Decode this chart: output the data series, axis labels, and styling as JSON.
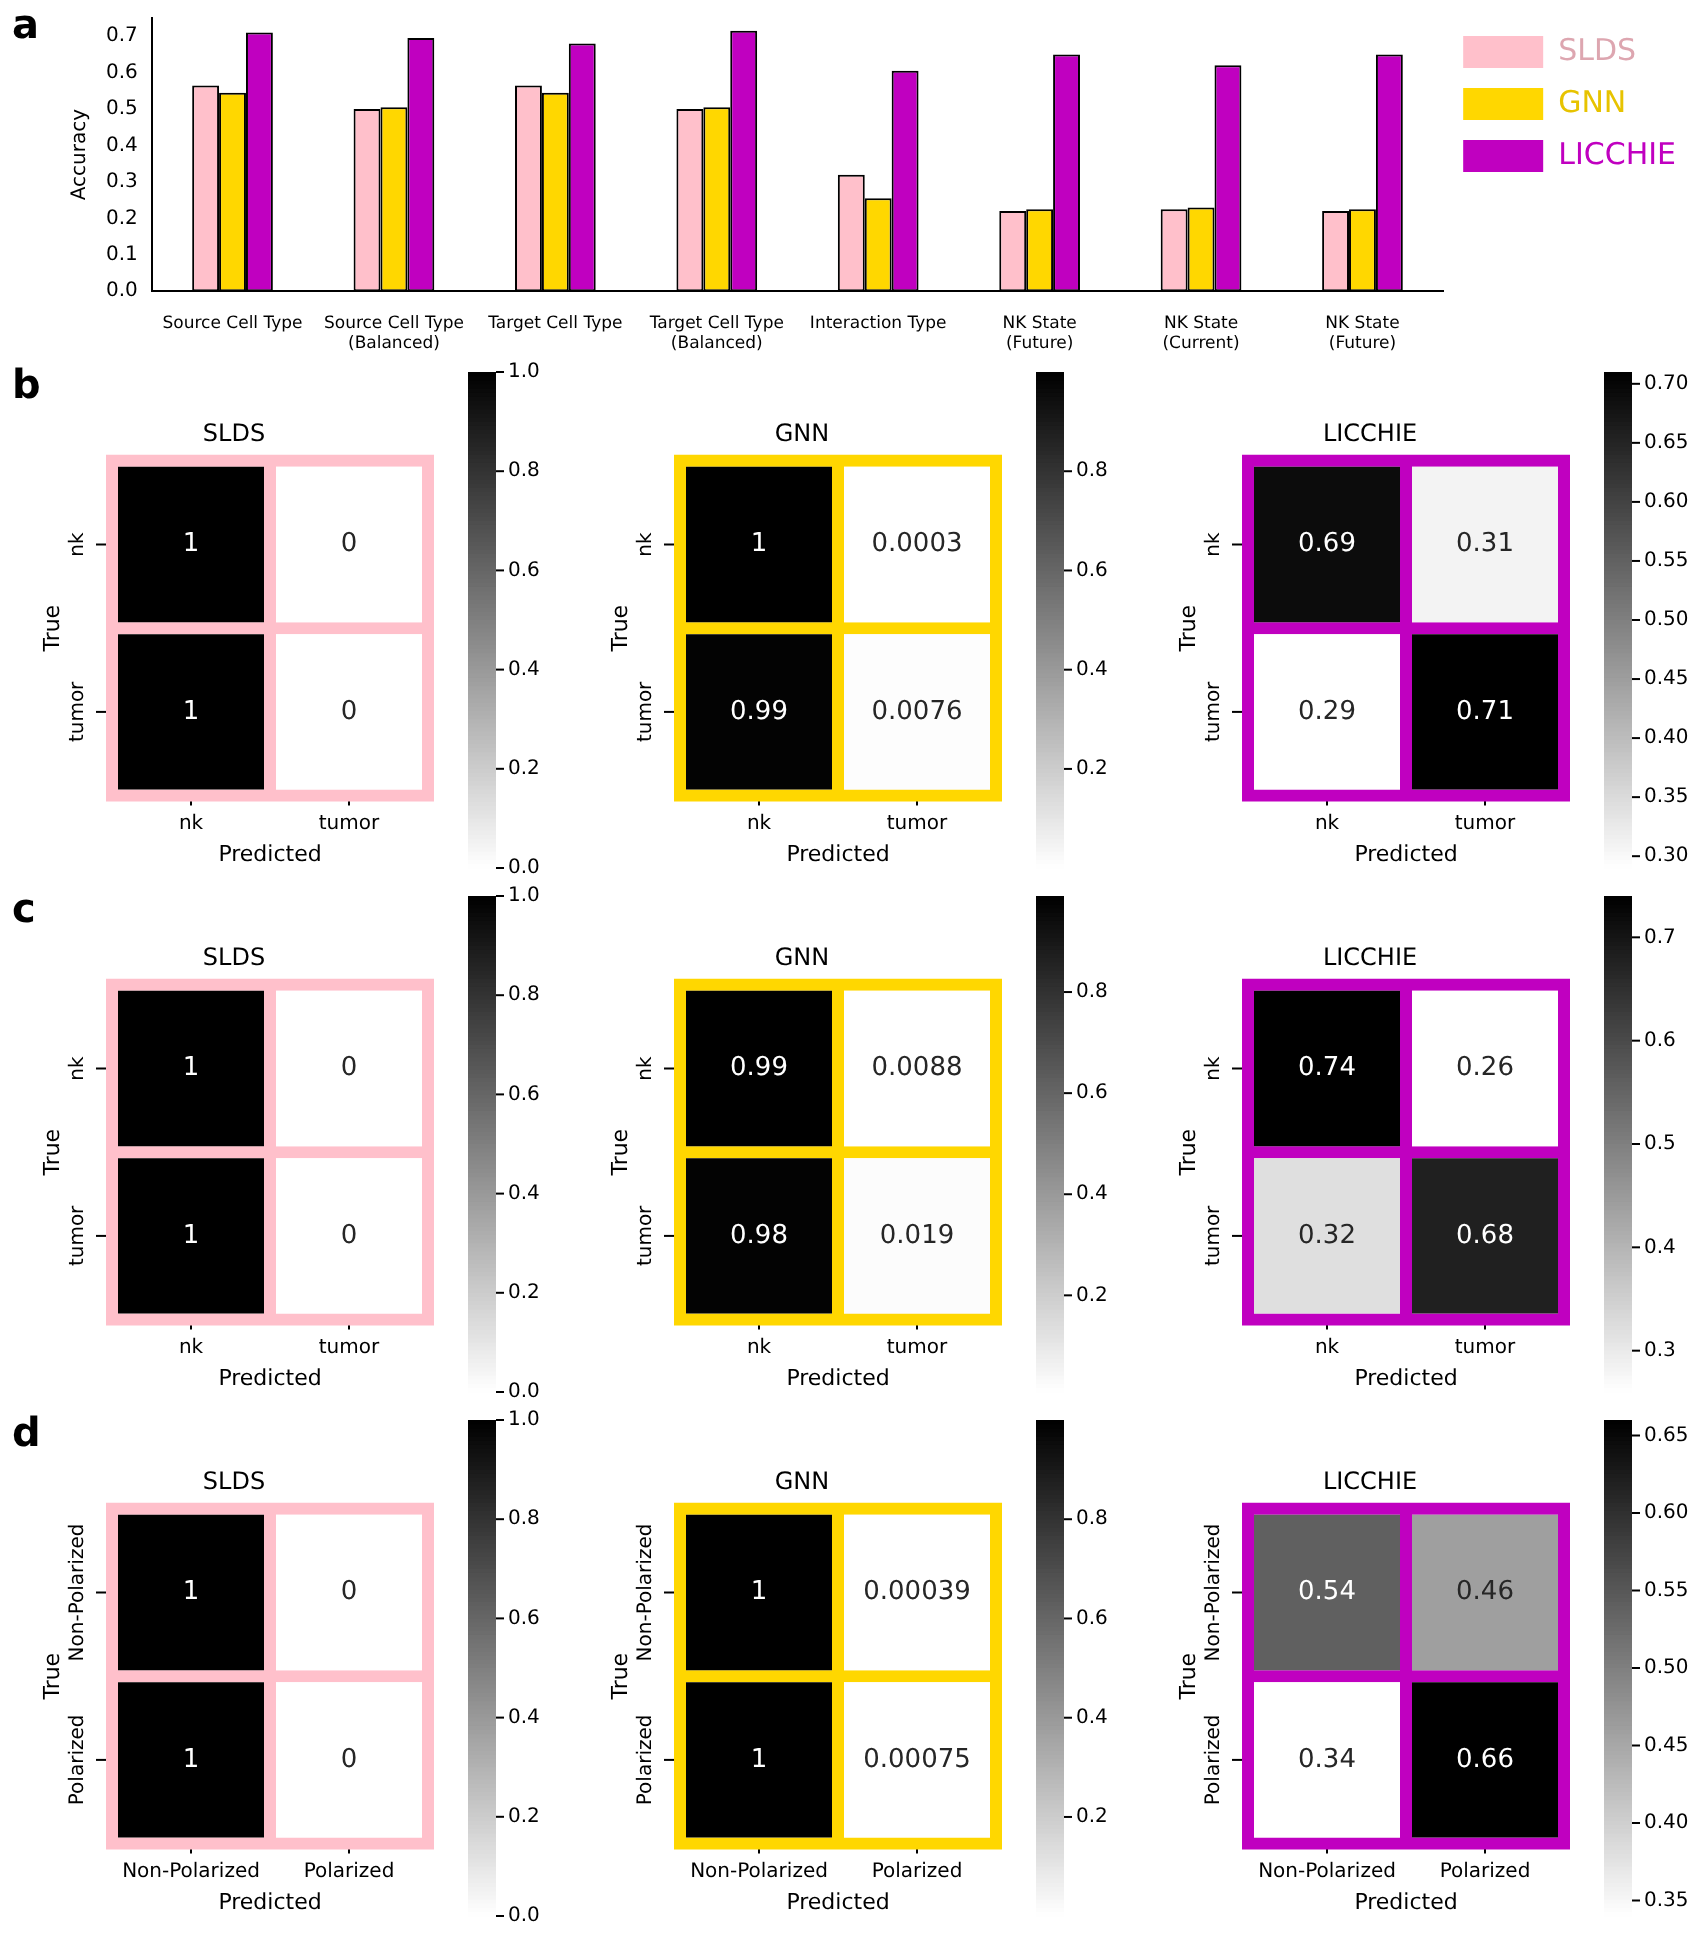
{
  "chart_data": [
    {
      "type": "bar",
      "annotations": [
        "a"
      ],
      "ylabel": "Accuracy",
      "categories": [
        "Source Cell Type",
        "Source Cell Type\n(Balanced)",
        "Target Cell Type",
        "Target Cell Type\n(Balanced)",
        "Interaction Type",
        "NK State\n(Future)",
        "NK State\n(Current)",
        "NK State\n(Future)"
      ],
      "series": [
        {
          "name": "SLDS",
          "color": "#ffc0cb",
          "values": [
            0.565,
            0.5,
            0.565,
            0.5,
            0.32,
            0.22,
            0.225,
            0.22
          ]
        },
        {
          "name": "GNN",
          "color": "#ffd700",
          "values": [
            0.545,
            0.505,
            0.545,
            0.505,
            0.255,
            0.225,
            0.23,
            0.225
          ]
        },
        {
          "name": "LICCHIE",
          "color": "#c000c0",
          "values": [
            0.71,
            0.695,
            0.68,
            0.715,
            0.605,
            0.65,
            0.62,
            0.65
          ]
        }
      ],
      "ylim": [
        0,
        0.75
      ],
      "yticks": [
        {
          "value": 0,
          "label": "0.0"
        },
        0.1,
        0.2,
        0.3,
        0.4,
        0.5,
        0.6,
        0.7
      ],
      "legend": "right"
    },
    {
      "type": "heatmap",
      "annotations": [
        "b"
      ],
      "title": "SLDS",
      "xlabel": "Predicted",
      "ylabel": "True",
      "categories": [
        "nk",
        "tumor"
      ],
      "y_categories": [
        "nk",
        "tumor"
      ],
      "cells": [
        [
          1,
          0
        ],
        [
          1,
          0
        ]
      ],
      "color": "#ffc0cb",
      "clim": [
        0,
        1
      ],
      "cticks": [
        {
          "value": 0,
          "label": "0.0"
        },
        0.2,
        0.4,
        0.6,
        0.8,
        {
          "value": 1,
          "label": "1.0"
        }
      ],
      "data_labels": true
    },
    {
      "type": "heatmap",
      "title": "GNN",
      "xlabel": "Predicted",
      "ylabel": "True",
      "categories": [
        "nk",
        "tumor"
      ],
      "y_categories": [
        "nk",
        "tumor"
      ],
      "cells": [
        [
          1,
          0.0003
        ],
        [
          0.99,
          0.0076
        ]
      ],
      "color": "#ffd700",
      "clim": [
        0.0003,
        1
      ],
      "cticks": [
        0.2,
        0.4,
        0.6,
        0.8
      ],
      "data_labels": true
    },
    {
      "type": "heatmap",
      "title": "LICCHIE",
      "xlabel": "Predicted",
      "ylabel": "True",
      "categories": [
        "nk",
        "tumor"
      ],
      "y_categories": [
        "nk",
        "tumor"
      ],
      "cells": [
        [
          0.69,
          0.31
        ],
        [
          0.29,
          0.71
        ]
      ],
      "color": "#c000c0",
      "clim": [
        0.29,
        0.71
      ],
      "cticks": [
        {
          "value": 0.3,
          "label": "0.30"
        },
        0.35,
        {
          "value": 0.4,
          "label": "0.40"
        },
        0.45,
        {
          "value": 0.5,
          "label": "0.50"
        },
        0.55,
        {
          "value": 0.6,
          "label": "0.60"
        },
        0.65,
        {
          "value": 0.7,
          "label": "0.70"
        }
      ],
      "data_labels": true
    },
    {
      "type": "heatmap",
      "annotations": [
        "c"
      ],
      "title": "SLDS",
      "xlabel": "Predicted",
      "ylabel": "True",
      "categories": [
        "nk",
        "tumor"
      ],
      "y_categories": [
        "nk",
        "tumor"
      ],
      "cells": [
        [
          1,
          0
        ],
        [
          1,
          0
        ]
      ],
      "color": "#ffc0cb",
      "clim": [
        0,
        1
      ],
      "cticks": [
        {
          "value": 0,
          "label": "0.0"
        },
        0.2,
        0.4,
        0.6,
        0.8,
        {
          "value": 1,
          "label": "1.0"
        }
      ],
      "data_labels": true
    },
    {
      "type": "heatmap",
      "title": "GNN",
      "xlabel": "Predicted",
      "ylabel": "True",
      "categories": [
        "nk",
        "tumor"
      ],
      "y_categories": [
        "nk",
        "tumor"
      ],
      "cells": [
        [
          0.99,
          0.0088
        ],
        [
          0.98,
          0.019
        ]
      ],
      "color": "#ffd700",
      "clim": [
        0.0088,
        0.99
      ],
      "cticks": [
        0.2,
        0.4,
        0.6,
        0.8
      ],
      "data_labels": true
    },
    {
      "type": "heatmap",
      "title": "LICCHIE",
      "xlabel": "Predicted",
      "ylabel": "True",
      "categories": [
        "nk",
        "tumor"
      ],
      "y_categories": [
        "nk",
        "tumor"
      ],
      "cells": [
        [
          0.74,
          0.26
        ],
        [
          0.32,
          0.68
        ]
      ],
      "color": "#c000c0",
      "clim": [
        0.26,
        0.74
      ],
      "cticks": [
        0.3,
        0.4,
        0.5,
        0.6,
        0.7
      ],
      "data_labels": true
    },
    {
      "type": "heatmap",
      "annotations": [
        "d"
      ],
      "title": "SLDS",
      "xlabel": "Predicted",
      "ylabel": "True",
      "categories": [
        "Non-Polarized",
        "Polarized"
      ],
      "y_categories": [
        "Non-Polarized",
        "Polarized"
      ],
      "cells": [
        [
          1,
          0
        ],
        [
          1,
          0
        ]
      ],
      "color": "#ffc0cb",
      "clim": [
        0,
        1
      ],
      "cticks": [
        {
          "value": 0,
          "label": "0.0"
        },
        0.2,
        0.4,
        0.6,
        0.8,
        {
          "value": 1,
          "label": "1.0"
        }
      ],
      "data_labels": true
    },
    {
      "type": "heatmap",
      "title": "GNN",
      "xlabel": "Predicted",
      "ylabel": "True",
      "categories": [
        "Non-Polarized",
        "Polarized"
      ],
      "y_categories": [
        "Non-Polarized",
        "Polarized"
      ],
      "cells": [
        [
          1,
          0.00039
        ],
        [
          1,
          0.00075
        ]
      ],
      "color": "#ffd700",
      "clim": [
        0.00039,
        1
      ],
      "cticks": [
        0.2,
        0.4,
        0.6,
        0.8
      ],
      "data_labels": true
    },
    {
      "type": "heatmap",
      "title": "LICCHIE",
      "xlabel": "Predicted",
      "ylabel": "True",
      "categories": [
        "Non-Polarized",
        "Polarized"
      ],
      "y_categories": [
        "Non-Polarized",
        "Polarized"
      ],
      "cells": [
        [
          0.54,
          0.46
        ],
        [
          0.34,
          0.66
        ]
      ],
      "color": "#c000c0",
      "clim": [
        0.34,
        0.66
      ],
      "cticks": [
        0.35,
        {
          "value": 0.4,
          "label": "0.40"
        },
        0.45,
        {
          "value": 0.5,
          "label": "0.50"
        },
        0.55,
        {
          "value": 0.6,
          "label": "0.60"
        },
        0.65
      ],
      "data_labels": true
    }
  ]
}
